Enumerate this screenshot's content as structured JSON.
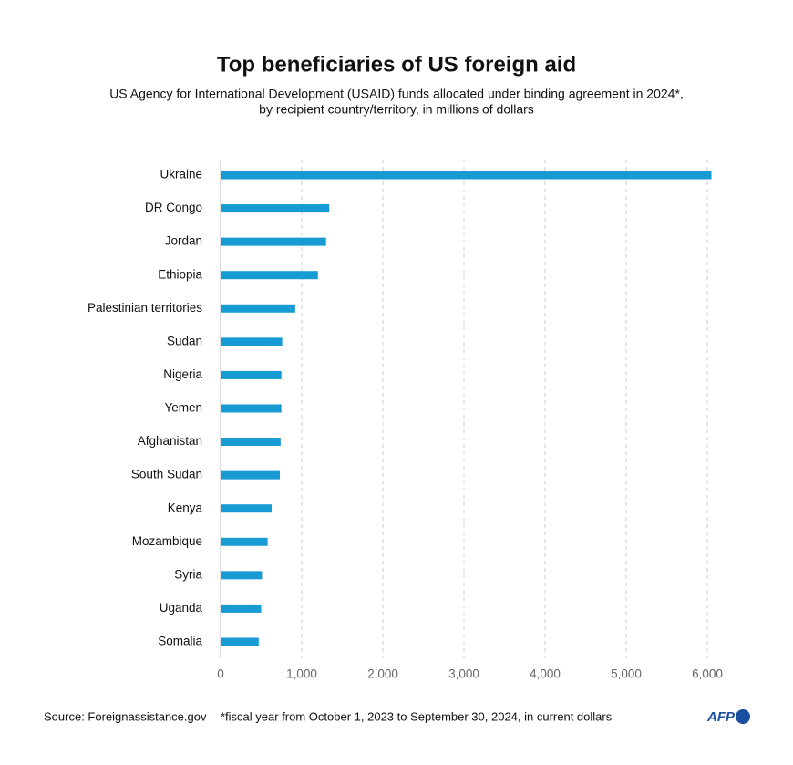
{
  "chart_data": {
    "type": "barh",
    "title": "Top beneficiaries of US foreign aid",
    "subtitle": [
      "US Agency for International Development (USAID) funds allocated under binding agreement in 2024*,",
      "by recipient country/territory, in millions of dollars"
    ],
    "categories": [
      "Ukraine",
      "DR Congo",
      "Jordan",
      "Ethiopia",
      "Palestinian territories",
      "Sudan",
      "Nigeria",
      "Yemen",
      "Afghanistan",
      "South Sudan",
      "Kenya",
      "Mozambique",
      "Syria",
      "Uganda",
      "Somalia"
    ],
    "values": [
      6050,
      1340,
      1300,
      1200,
      920,
      760,
      750,
      750,
      740,
      730,
      630,
      580,
      510,
      500,
      470
    ],
    "color": "#189ad3",
    "xlim": [
      0,
      6000
    ],
    "xticks": [
      0,
      {
        "value": 1000,
        "label": "1,000"
      },
      {
        "value": 2000,
        "label": "2,000"
      },
      {
        "value": 3000,
        "label": "3,000"
      },
      {
        "value": 4000,
        "label": "4,000"
      },
      {
        "value": 5000,
        "label": "5,000"
      },
      {
        "value": 6000,
        "label": "6,000"
      }
    ],
    "grid": true,
    "source": "Source: Foreignassistance.gov",
    "note": "*fiscal year from October 1, 2023 to September 30, 2024, in current dollars",
    "logo": "AFP"
  }
}
